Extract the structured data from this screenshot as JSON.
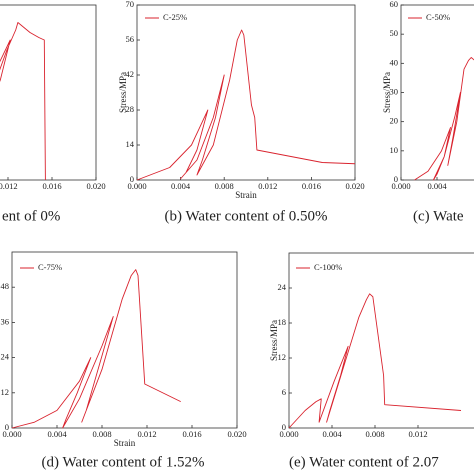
{
  "chart_data": [
    {
      "type": "line",
      "caption": "ent of 0%",
      "x": [
        0.009,
        0.011,
        0.0122,
        0.0113,
        0.0095,
        0.0105,
        0.0119,
        0.0127,
        0.0129,
        0.014,
        0.0148,
        0.0153,
        0.0154
      ],
      "series": [
        {
          "name": null,
          "color": "#d9232e",
          "values": [
            28,
            45,
            56,
            40,
            20,
            35,
            52,
            60,
            63,
            59,
            57,
            56,
            0
          ]
        }
      ],
      "xlim": [
        0,
        0.02
      ],
      "xticks": [
        {
          "value": 0.012,
          "label": "0.012"
        },
        {
          "value": 0.016,
          "label": "0.016"
        },
        {
          "value": 0.02,
          "label": "0.020"
        }
      ],
      "ylim": [
        0,
        70
      ],
      "yticks": []
    },
    {
      "type": "line",
      "caption": "(b) Water content of 0.50%",
      "xlabel": "Strain",
      "ylabel": "Stress/MPa",
      "x": [
        0,
        0.003,
        0.005,
        0.0065,
        0.0055,
        0.0045,
        0.004,
        0.0055,
        0.007,
        0.008,
        0.0072,
        0.006,
        0.0055,
        0.007,
        0.0085,
        0.0092,
        0.0096,
        0.0098,
        0.0105,
        0.0108,
        0.011,
        0.017,
        0.02
      ],
      "series": [
        {
          "name": "C-25%",
          "color": "#d9232e",
          "values": [
            0,
            5,
            14,
            28,
            12,
            3,
            0.5,
            8,
            25,
            42,
            25,
            8,
            2,
            14,
            40,
            56,
            60,
            58,
            30,
            25,
            12,
            7,
            6.5
          ]
        }
      ],
      "xlim": [
        0,
        0.02
      ],
      "xticks": [
        {
          "value": 0,
          "label": "0.000"
        },
        {
          "value": 0.004,
          "label": "0.004"
        },
        {
          "value": 0.008,
          "label": "0.008"
        },
        {
          "value": 0.012,
          "label": "0.012"
        },
        {
          "value": 0.016,
          "label": "0.016"
        },
        {
          "value": 0.02,
          "label": "0.020"
        }
      ],
      "ylim": [
        0,
        70
      ],
      "yticks": [
        0,
        14,
        28,
        42,
        56,
        70
      ]
    },
    {
      "type": "line",
      "caption": "(c) Wate",
      "ylabel": "Stress/MPa",
      "x": [
        0.0015,
        0.003,
        0.0045,
        0.0055,
        0.0048,
        0.004,
        0.0036,
        0.0048,
        0.006,
        0.0066,
        0.0058,
        0.0052,
        0.0062,
        0.007,
        0.0075,
        0.0078,
        0.0082
      ],
      "series": [
        {
          "name": "C-50%",
          "color": "#d9232e",
          "values": [
            0,
            3,
            10,
            18,
            8,
            2,
            0,
            8,
            22,
            30,
            15,
            5,
            20,
            38,
            41,
            42,
            41
          ]
        }
      ],
      "xlim": [
        0,
        0.02
      ],
      "xticks": [
        {
          "value": 0,
          "label": "0.000"
        },
        {
          "value": 0.004,
          "label": "0.004"
        }
      ],
      "ylim": [
        0,
        60
      ],
      "yticks": [
        0,
        10,
        20,
        30,
        40,
        50,
        60
      ]
    },
    {
      "type": "line",
      "caption": "(d) Water content of 1.52%",
      "xlabel": "Strain",
      "x": [
        0,
        0.002,
        0.004,
        0.006,
        0.007,
        0.0058,
        0.0048,
        0.0045,
        0.006,
        0.008,
        0.009,
        0.0078,
        0.0066,
        0.0062,
        0.008,
        0.0098,
        0.0106,
        0.011,
        0.0112,
        0.0118,
        0.015
      ],
      "series": [
        {
          "name": "C-75%",
          "color": "#d9232e",
          "values": [
            0,
            2,
            6,
            16,
            24,
            12,
            3,
            0,
            10,
            28,
            38,
            22,
            6,
            2,
            20,
            44,
            52,
            54,
            52,
            15,
            9
          ]
        }
      ],
      "xlim": [
        0,
        0.02
      ],
      "xticks": [
        {
          "value": 0,
          "label": "0.000"
        },
        {
          "value": 0.004,
          "label": "0.004"
        },
        {
          "value": 0.008,
          "label": "0.008"
        },
        {
          "value": 0.012,
          "label": "0.012"
        },
        {
          "value": 0.016,
          "label": "0.016"
        },
        {
          "value": 0.02,
          "label": "0.020"
        }
      ],
      "ylim": [
        0,
        60
      ],
      "yticks": [
        0,
        12,
        24,
        36,
        48
      ]
    },
    {
      "type": "line",
      "caption": "(e) Water content of 2.07",
      "ylabel": "Stress/MPa",
      "x": [
        0,
        0.0015,
        0.0025,
        0.003,
        0.0028,
        0.0042,
        0.0055,
        0.0048,
        0.0038,
        0.0035,
        0.005,
        0.0065,
        0.0072,
        0.0075,
        0.0078,
        0.0088,
        0.0089,
        0.016
      ],
      "series": [
        {
          "name": "C-100%",
          "color": "#d9232e",
          "values": [
            0,
            3,
            4.5,
            5,
            1,
            8,
            14,
            9,
            3,
            1,
            10,
            19,
            22,
            23,
            22.5,
            9,
            4,
            3
          ]
        }
      ],
      "xlim": [
        0,
        0.02
      ],
      "xticks": [
        {
          "value": 0,
          "label": "0.000"
        },
        {
          "value": 0.004,
          "label": "0.004"
        },
        {
          "value": 0.008,
          "label": "0.008"
        },
        {
          "value": 0.012,
          "label": "0.012"
        }
      ],
      "ylim": [
        0,
        30
      ],
      "yticks": [
        0,
        6,
        12,
        18,
        24
      ]
    }
  ]
}
